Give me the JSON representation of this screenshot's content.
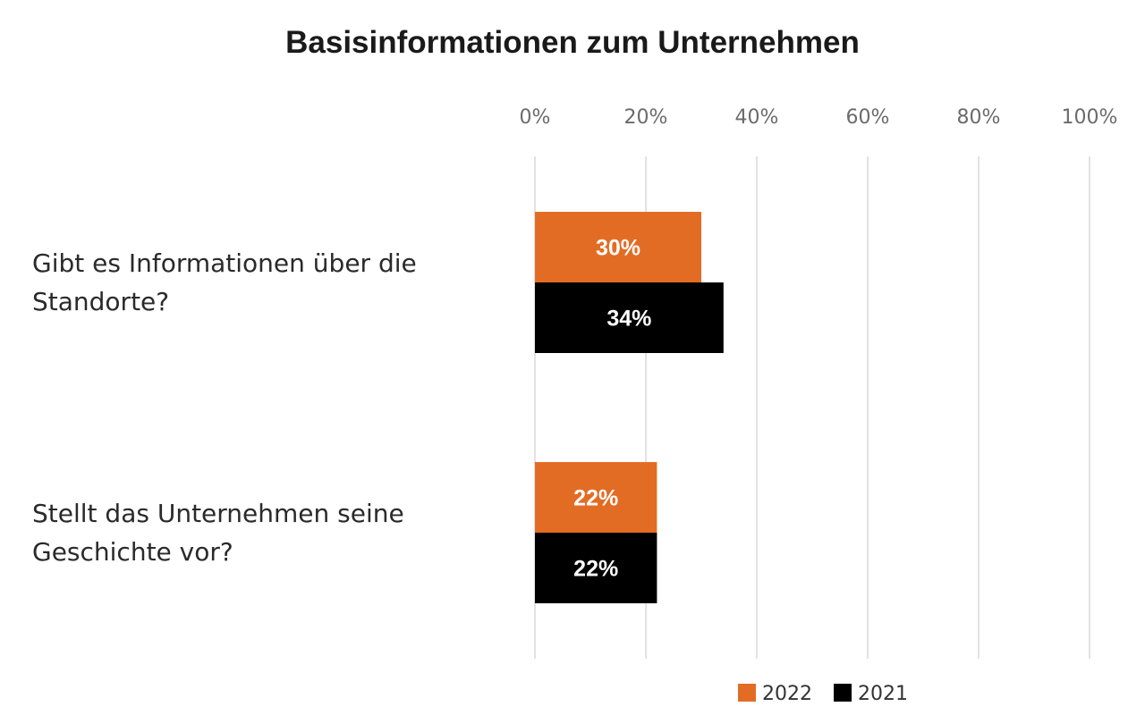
{
  "chart_data": {
    "type": "bar",
    "orientation": "horizontal",
    "title": "Basisinformationen zum Unternehmen",
    "categories": [
      [
        "Gibt es Informationen über die",
        "Standorte?"
      ],
      [
        "Stellt das Unternehmen seine",
        "Geschichte vor?"
      ]
    ],
    "series": [
      {
        "name": "2022",
        "values": [
          30,
          22
        ],
        "labels": [
          "30%",
          "22%"
        ],
        "color": "#e36c24"
      },
      {
        "name": "2021",
        "values": [
          34,
          22
        ],
        "labels": [
          "34%",
          "22%"
        ],
        "color": "#000000"
      }
    ],
    "xlim": [
      0,
      100
    ],
    "xticks": [
      "0%",
      "20%",
      "40%",
      "60%",
      "80%",
      "100%"
    ],
    "x_axis_position": "top",
    "grid": true,
    "gridline_color": "#d9d9d9",
    "legend_position": "bottom-right"
  }
}
